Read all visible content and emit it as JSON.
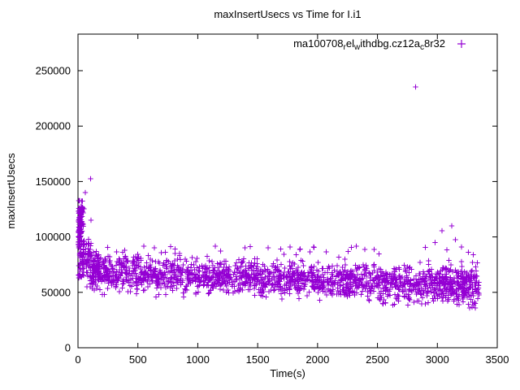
{
  "chart_data": {
    "type": "scatter",
    "title": "maxInsertUsecs vs Time for I.i1",
    "xlabel": "Time(s)",
    "ylabel": "maxInsertUsecs",
    "xlim": [
      0,
      3500
    ],
    "ylim": [
      0,
      283000
    ],
    "xticks": [
      0,
      500,
      1000,
      1500,
      2000,
      2500,
      3000,
      3500
    ],
    "yticks": [
      0,
      50000,
      100000,
      150000,
      200000,
      250000
    ],
    "grid": false,
    "legend": {
      "position": "top-right",
      "marker": "plus",
      "label_parts": [
        {
          "t": "ma100708"
        },
        {
          "s": "r"
        },
        {
          "t": "el"
        },
        {
          "s": "w"
        },
        {
          "t": "ithdbg.cz12a"
        },
        {
          "s": "c"
        },
        {
          "t": "8r32"
        }
      ]
    },
    "marker_color": "#9400d3",
    "axis_color": "#000000",
    "seed": 42,
    "clusters": [
      {
        "x": [
          2,
          50
        ],
        "count": 100,
        "y": {
          "type": "uniform",
          "min": 62000,
          "max": 133000
        }
      },
      {
        "x": [
          2,
          35
        ],
        "count": 45,
        "y": {
          "type": "uniform",
          "min": 90000,
          "max": 128000
        }
      },
      {
        "x": [
          35,
          110
        ],
        "count": 60,
        "y": {
          "type": "normal",
          "mean": 80000,
          "sd": 12000,
          "min": 55000,
          "max": 115000
        }
      },
      {
        "x": [
          100,
          180
        ],
        "count": 70,
        "y": {
          "type": "normal",
          "mean": 70000,
          "sd": 8000,
          "min": 52000,
          "max": 100000
        }
      },
      {
        "x": [
          150,
          500
        ],
        "count": 230,
        "y": {
          "type": "normal",
          "mean": 68000,
          "sd": 8000,
          "min": 48000,
          "max": 97000
        }
      },
      {
        "x": [
          500,
          1000
        ],
        "count": 280,
        "y": {
          "type": "normal",
          "mean": 65000,
          "sd": 7500,
          "min": 46000,
          "max": 92000
        }
      },
      {
        "x": [
          1000,
          1500
        ],
        "count": 280,
        "y": {
          "type": "normal",
          "mean": 63500,
          "sd": 7000,
          "min": 45000,
          "max": 90000
        }
      },
      {
        "x": [
          1500,
          2000
        ],
        "count": 280,
        "y": {
          "type": "normal",
          "mean": 62000,
          "sd": 7000,
          "min": 44000,
          "max": 88000
        }
      },
      {
        "x": [
          2000,
          2500
        ],
        "count": 280,
        "y": {
          "type": "normal",
          "mean": 60500,
          "sd": 7000,
          "min": 42000,
          "max": 86000
        }
      },
      {
        "x": [
          2500,
          3000
        ],
        "count": 270,
        "y": {
          "type": "normal",
          "mean": 59000,
          "sd": 7000,
          "min": 40000,
          "max": 84000
        }
      },
      {
        "x": [
          3000,
          3350
        ],
        "count": 260,
        "y": {
          "type": "normal",
          "mean": 57000,
          "sd": 8000,
          "min": 36000,
          "max": 84000
        }
      },
      {
        "x": [
          400,
          2600
        ],
        "count": 35,
        "y": {
          "type": "uniform",
          "min": 80000,
          "max": 93000
        }
      },
      {
        "x": [
          2500,
          3350
        ],
        "count": 40,
        "y": {
          "type": "uniform",
          "min": 38000,
          "max": 48000
        }
      }
    ],
    "outliers": [
      [
        105,
        152500
      ],
      [
        60,
        140000
      ],
      [
        2820,
        235500
      ],
      [
        2900,
        90500
      ],
      [
        2980,
        95000
      ],
      [
        3040,
        105500
      ],
      [
        3080,
        88500
      ],
      [
        3120,
        110000
      ],
      [
        3150,
        97500
      ],
      [
        3200,
        91000
      ],
      [
        3260,
        86000
      ],
      [
        3300,
        84000
      ]
    ]
  }
}
